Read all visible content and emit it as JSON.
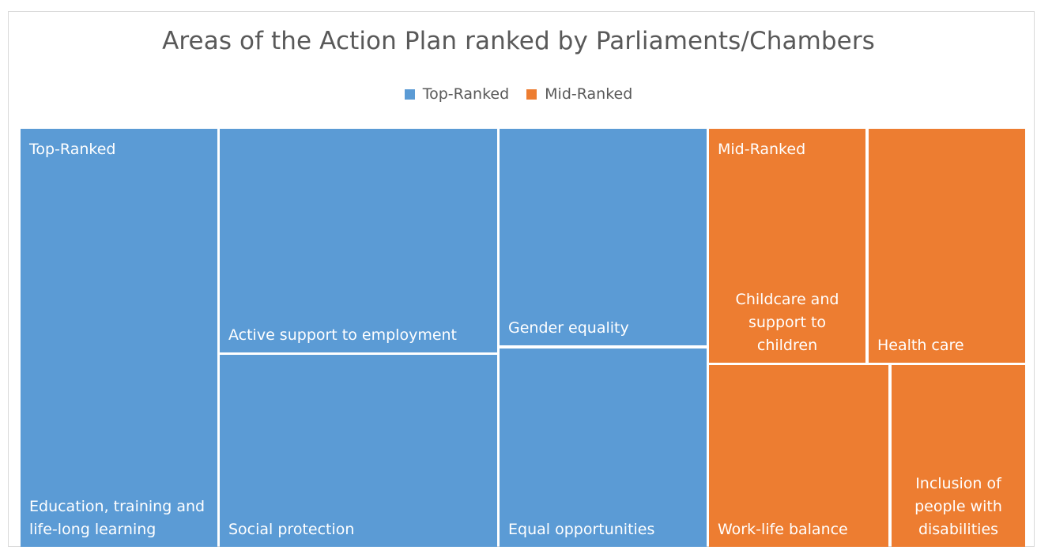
{
  "chart_data": {
    "type": "treemap",
    "title": "Areas of the Action Plan ranked by Parliaments/Chambers",
    "legend_position": "top",
    "groups": [
      {
        "name": "Top-Ranked",
        "color": "#5b9bd5",
        "items": [
          {
            "label": "Education, training and life-long learning",
            "value": 21
          },
          {
            "label": "Active support to employment",
            "value": 14
          },
          {
            "label": "Social protection",
            "value": 14
          },
          {
            "label": "Gender equality",
            "value": 11
          },
          {
            "label": "Equal opportunities",
            "value": 11
          }
        ]
      },
      {
        "name": "Mid-Ranked",
        "color": "#ed7d31",
        "items": [
          {
            "label": "Childcare and support to children",
            "value": 9
          },
          {
            "label": "Health care",
            "value": 8
          },
          {
            "label": "Work-life balance",
            "value": 9
          },
          {
            "label": "Inclusion of people with disabilities",
            "value": 7
          }
        ]
      }
    ]
  }
}
